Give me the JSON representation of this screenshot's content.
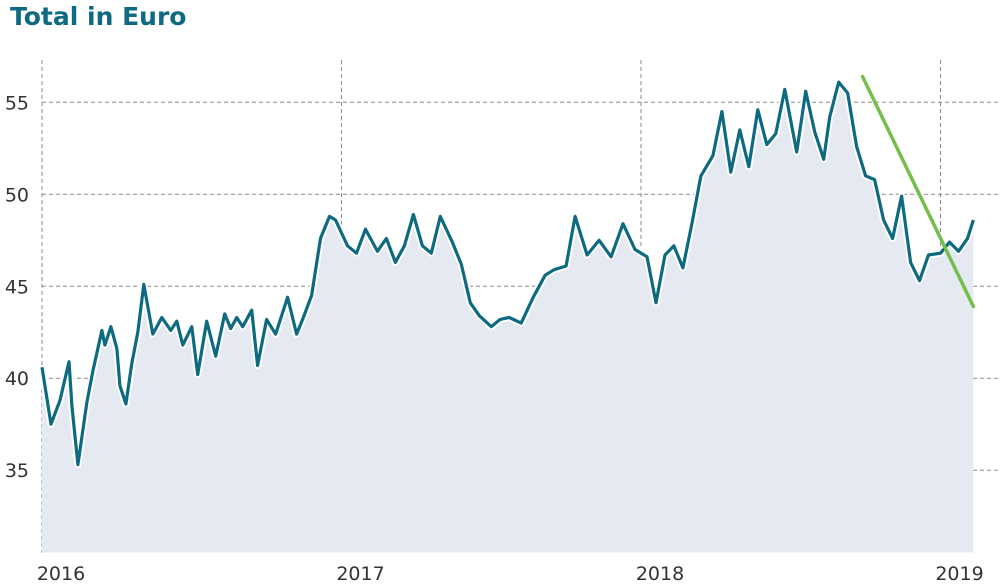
{
  "chart_data": {
    "type": "line",
    "title": "Total in Euro",
    "xlabel": "",
    "ylabel": "",
    "x_ticks": [
      "2016",
      "2017",
      "2018",
      "2019"
    ],
    "y_ticks": [
      35,
      40,
      45,
      50,
      55
    ],
    "ylim": [
      30.5,
      57.3
    ],
    "xlim": [
      2016.0,
      2019.11
    ],
    "grid": true,
    "series": [
      {
        "name": "",
        "color": "#0e6a80",
        "area_fill": "#e4e9f2",
        "x": [
          2016.0,
          2016.03,
          2016.06,
          2016.09,
          2016.1,
          2016.12,
          2016.15,
          2016.17,
          2016.2,
          2016.21,
          2016.23,
          2016.25,
          2016.26,
          2016.28,
          2016.3,
          2016.32,
          2016.34,
          2016.37,
          2016.4,
          2016.43,
          2016.45,
          2016.47,
          2016.5,
          2016.52,
          2016.55,
          2016.58,
          2016.61,
          2016.63,
          2016.65,
          2016.67,
          2016.7,
          2016.72,
          2016.75,
          2016.78,
          2016.8,
          2016.82,
          2016.85,
          2016.87,
          2016.9,
          2016.93,
          2016.96,
          2016.98,
          2017.02,
          2017.05,
          2017.08,
          2017.12,
          2017.15,
          2017.18,
          2017.21,
          2017.24,
          2017.27,
          2017.3,
          2017.33,
          2017.37,
          2017.4,
          2017.43,
          2017.46,
          2017.5,
          2017.53,
          2017.56,
          2017.6,
          2017.64,
          2017.68,
          2017.71,
          2017.75,
          2017.78,
          2017.82,
          2017.86,
          2017.9,
          2017.94,
          2017.98,
          2018.02,
          2018.05,
          2018.08,
          2018.11,
          2018.14,
          2018.17,
          2018.2,
          2018.24,
          2018.27,
          2018.3,
          2018.33,
          2018.36,
          2018.39,
          2018.42,
          2018.45,
          2018.48,
          2018.52,
          2018.55,
          2018.58,
          2018.61,
          2018.63,
          2018.66,
          2018.69,
          2018.72,
          2018.75,
          2018.78,
          2018.81,
          2018.84,
          2018.87,
          2018.9,
          2018.93,
          2018.96,
          2019.0,
          2019.03,
          2019.06,
          2019.09,
          2019.11
        ],
        "values": [
          40.6,
          37.5,
          38.8,
          40.9,
          38.5,
          35.3,
          38.7,
          40.4,
          42.6,
          41.8,
          42.8,
          41.6,
          39.6,
          38.6,
          40.8,
          42.5,
          45.1,
          42.4,
          43.3,
          42.6,
          43.1,
          41.8,
          42.8,
          40.2,
          43.1,
          41.2,
          43.5,
          42.7,
          43.3,
          42.8,
          43.7,
          40.7,
          43.2,
          42.4,
          43.4,
          44.4,
          42.4,
          43.2,
          44.5,
          47.6,
          48.8,
          48.6,
          47.2,
          46.8,
          48.1,
          46.9,
          47.6,
          46.3,
          47.2,
          48.9,
          47.2,
          46.8,
          48.8,
          47.4,
          46.2,
          44.1,
          43.4,
          42.8,
          43.2,
          43.3,
          43.0,
          44.4,
          45.6,
          45.9,
          46.1,
          48.8,
          46.7,
          47.5,
          46.6,
          48.4,
          47.0,
          46.6,
          44.1,
          46.7,
          47.2,
          46.0,
          48.4,
          51.0,
          52.1,
          54.5,
          51.2,
          53.5,
          51.5,
          54.6,
          52.7,
          53.3,
          55.7,
          52.3,
          55.6,
          53.4,
          51.9,
          54.2,
          56.1,
          55.5,
          52.6,
          51.0,
          50.8,
          48.6,
          47.6,
          49.9,
          46.3,
          45.3,
          46.7,
          46.8,
          47.4,
          46.9,
          47.6,
          48.6
        ]
      },
      {
        "name": "",
        "color": "#74bf4a",
        "x": [
          2018.74,
          2019.11
        ],
        "values": [
          56.4,
          43.9
        ]
      }
    ]
  }
}
